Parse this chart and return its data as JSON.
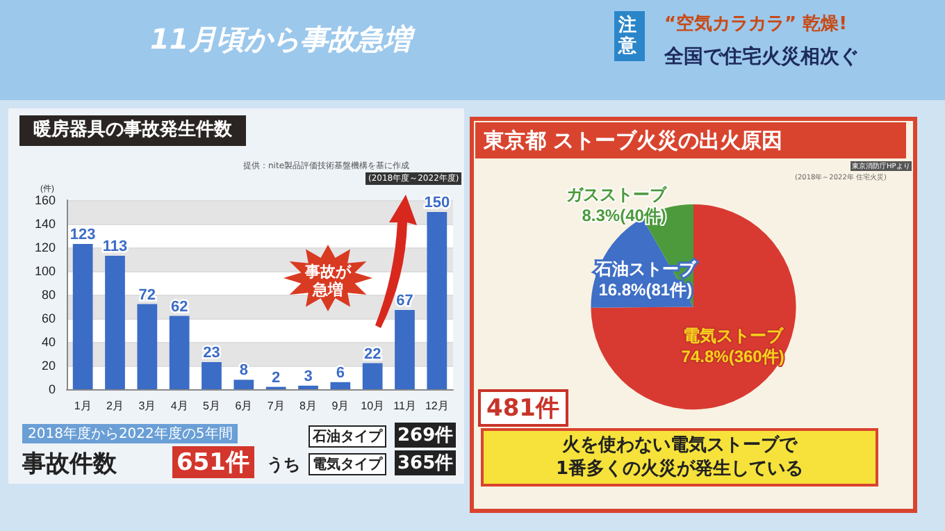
{
  "chart_data": [
    {
      "type": "bar",
      "title": "暖房器具の事故発生件数",
      "ylabel": "(件)",
      "categories": [
        "1月",
        "2月",
        "3月",
        "4月",
        "5月",
        "6月",
        "7月",
        "8月",
        "9月",
        "10月",
        "11月",
        "12月"
      ],
      "values": [
        123,
        113,
        72,
        62,
        23,
        8,
        2,
        3,
        6,
        22,
        67,
        150
      ],
      "color": "#3b6cc6",
      "ylim": [
        0,
        160
      ],
      "yticks": [
        0,
        20,
        40,
        60,
        80,
        100,
        120,
        140,
        160
      ],
      "grid": "y",
      "data_labels": true,
      "annotations": [
        "11月頃から事故急増",
        "注意",
        "“空気カラカラ” 乾燥!",
        "全国で住宅火災相次ぐ",
        "提供：nite製品評価技術基盤機構を基に作成",
        "(2018年度～2022年度)",
        "事故が急増",
        "2018年度から2022年度の5年間",
        "事故件数",
        "651件",
        "うち",
        "石油タイプ",
        "269件",
        "電気タイプ",
        "365件"
      ]
    },
    {
      "type": "pie",
      "title": "東京都 ストーブ火災の出火原因",
      "categories": [
        "電気ストーブ",
        "石油ストーブ",
        "ガスストーブ"
      ],
      "values": [
        74.8,
        16.8,
        8.3
      ],
      "colors": [
        "#d83a32",
        "#3f6fc6",
        "#4c9a3c"
      ],
      "value_labels": [
        "74.8%(360件)",
        "16.8%(81件)",
        "8.3%(40件)"
      ],
      "annotations": [
        "東京消防庁HPより",
        "(2018年～2022年 住宅火災)",
        "481件",
        "火を使わない電気ストーブで\n1番多くの火災が発生している"
      ]
    }
  ]
}
